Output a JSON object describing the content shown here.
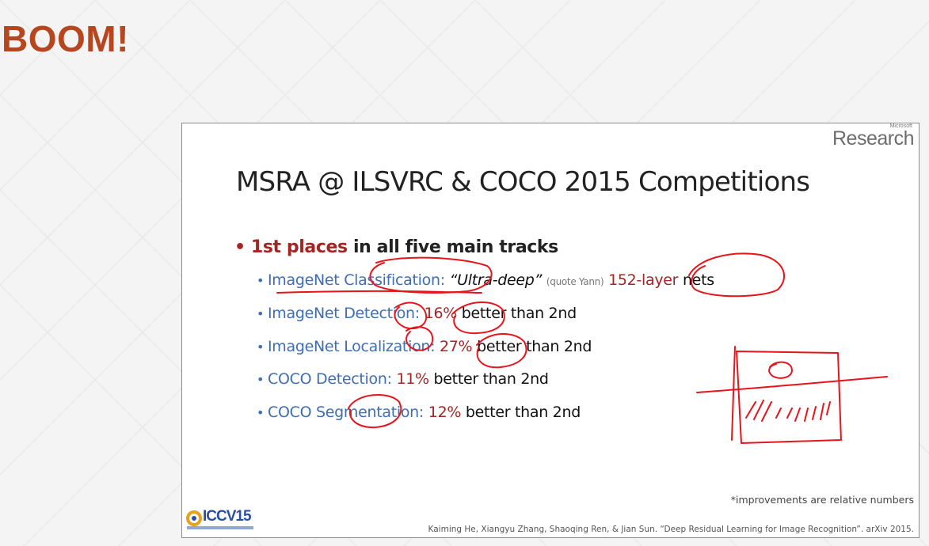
{
  "page_heading": "BOOM!",
  "slide": {
    "logo_small": "Microsoft",
    "logo_main": "Research",
    "title": "MSRA @ ILSVRC & COCO 2015 Competitions",
    "main_bullet": {
      "highlight": "1st places",
      "rest": " in all five main tracks"
    },
    "sub_bullets": [
      {
        "track": "ImageNet Classification:",
        "quote": "“Ultra-deep”",
        "note": "(quote Yann)",
        "value": "152-layer",
        "rest": " nets"
      },
      {
        "track": "ImageNet Detection:",
        "value": "16%",
        "rest": " better than 2nd"
      },
      {
        "track": "ImageNet Localization:",
        "value": "27%",
        "rest": " better than 2nd"
      },
      {
        "track": "COCO Detection:",
        "value": "11%",
        "rest": " better than 2nd"
      },
      {
        "track": "COCO Segmentation:",
        "value": "12%",
        "rest": " better than 2nd"
      }
    ],
    "footnote": "*improvements are relative numbers",
    "citation": "Kaiming He, Xiangyu Zhang, Shaoqing Ren, & Jian Sun. “Deep Residual Learning for Image Recognition”. arXiv 2015.",
    "conference_logo": "ICCV15"
  },
  "colors": {
    "heading": "#b5461f",
    "highlight_red": "#a52424",
    "track_blue": "#3e6eb3",
    "annotation_ink": "#e8141c"
  }
}
